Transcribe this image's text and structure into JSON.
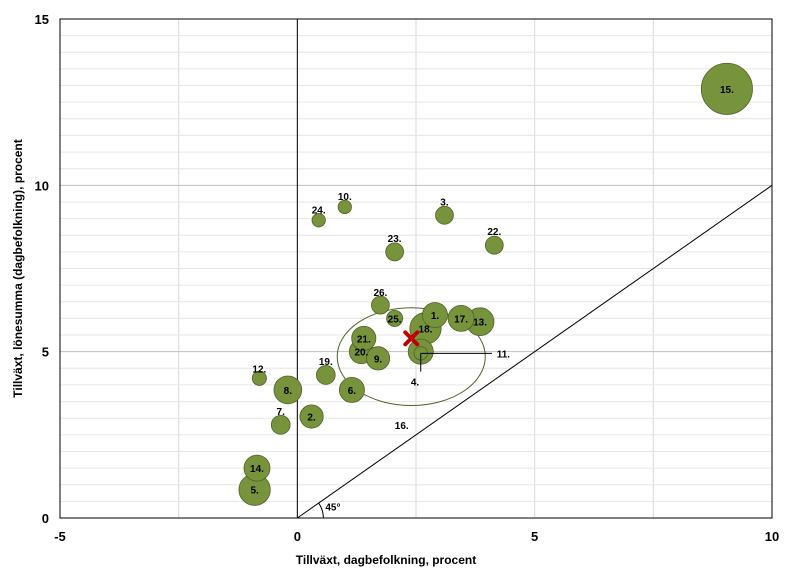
{
  "chart_data": {
    "type": "scatter",
    "title": "",
    "xlabel": "Tillväxt, dagbefolkning, procent",
    "ylabel": "Tillväxt, lönesumma (dagbefolkning), procent",
    "xlim": [
      -5,
      10
    ],
    "ylim": [
      0,
      15
    ],
    "x_ticks": [
      "-5",
      "0",
      "5",
      "10"
    ],
    "y_ticks": [
      "0",
      "5",
      "10",
      "15"
    ],
    "x_grid": [
      -5,
      -2.5,
      0,
      2.5,
      5,
      7.5,
      10
    ],
    "y_grid": [
      0,
      0.5,
      1,
      1.5,
      2,
      2.5,
      3,
      3.5,
      4,
      4.5,
      5,
      5.5,
      6,
      6.5,
      7,
      7.5,
      8,
      8.5,
      9,
      9.5,
      10,
      10.5,
      11,
      11.5,
      12,
      12.5,
      13,
      13.5,
      14,
      14.5,
      15
    ],
    "highlight_tick_color": "#c00000",
    "bubble_color": "#77933c",
    "bubble_edge_color": "#4f6228",
    "marker_color": "#c00000",
    "circle_color": "#4f6228",
    "points": [
      {
        "label": "1.",
        "x": 2.9,
        "y": 6.1,
        "size": 0.95
      },
      {
        "label": "2.",
        "x": 0.3,
        "y": 3.05,
        "size": 0.85
      },
      {
        "label": "3.",
        "x": 3.1,
        "y": 9.1,
        "size": 0.55
      },
      {
        "label": "4.",
        "x": 2.6,
        "y": 5.0,
        "size": 0.95
      },
      {
        "label": "5.",
        "x": -0.9,
        "y": 0.85,
        "size": 1.3
      },
      {
        "label": "6.",
        "x": 1.15,
        "y": 3.85,
        "size": 0.95
      },
      {
        "label": "7.",
        "x": -0.35,
        "y": 2.8,
        "size": 0.6
      },
      {
        "label": "8.",
        "x": -0.2,
        "y": 3.85,
        "size": 1.1
      },
      {
        "label": "9.",
        "x": 1.7,
        "y": 4.8,
        "size": 0.85
      },
      {
        "label": "10.",
        "x": 1.0,
        "y": 9.35,
        "size": 0.3
      },
      {
        "label": "11.",
        "x": 2.6,
        "y": 4.95,
        "size": 0.3
      },
      {
        "label": "12.",
        "x": -0.8,
        "y": 4.2,
        "size": 0.35
      },
      {
        "label": "13.",
        "x": 3.85,
        "y": 5.9,
        "size": 1.1
      },
      {
        "label": "14.",
        "x": -0.85,
        "y": 1.5,
        "size": 1.0
      },
      {
        "label": "15.",
        "x": 9.05,
        "y": 12.9,
        "size": 2.4
      },
      {
        "label": "16.",
        "x": 2.4,
        "y": 4.85,
        "size": 0.0
      },
      {
        "label": "17.",
        "x": 3.45,
        "y": 6.0,
        "size": 1.0
      },
      {
        "label": "18.",
        "x": 2.7,
        "y": 5.7,
        "size": 1.3
      },
      {
        "label": "19.",
        "x": 0.6,
        "y": 4.3,
        "size": 0.6
      },
      {
        "label": "20.",
        "x": 1.35,
        "y": 5.0,
        "size": 0.9
      },
      {
        "label": "21.",
        "x": 1.4,
        "y": 5.4,
        "size": 0.9
      },
      {
        "label": "22.",
        "x": 4.15,
        "y": 8.2,
        "size": 0.55
      },
      {
        "label": "23.",
        "x": 2.05,
        "y": 8.0,
        "size": 0.55
      },
      {
        "label": "24.",
        "x": 0.45,
        "y": 8.95,
        "size": 0.3
      },
      {
        "label": "25.",
        "x": 2.05,
        "y": 6.0,
        "size": 0.45
      },
      {
        "label": "26.",
        "x": 1.75,
        "y": 6.4,
        "size": 0.55
      }
    ],
    "average_marker": {
      "x": 2.4,
      "y": 5.4
    },
    "reference_circle": {
      "cx": 2.4,
      "cy": 4.85,
      "rx": 2.6,
      "ry": 2.1
    },
    "callout_lines": [
      {
        "from": [
          2.6,
          4.95
        ],
        "to": [
          4.1,
          4.95
        ]
      },
      {
        "from": [
          2.6,
          4.95
        ],
        "to": [
          2.6,
          4.4
        ]
      }
    ],
    "diagonal": {
      "from": [
        0,
        0
      ],
      "to": [
        10,
        10
      ]
    },
    "zero_vline": {
      "x": 0
    },
    "angle_label": "45°",
    "annotations": [
      {
        "text": "11.",
        "x": 4.2,
        "y": 4.95
      },
      {
        "text": "4.",
        "x": 2.48,
        "y": 4.1
      },
      {
        "text": "16.",
        "x": 2.2,
        "y": 2.8
      },
      {
        "text": "45°",
        "x": 0.75,
        "y": 0.35
      }
    ]
  }
}
